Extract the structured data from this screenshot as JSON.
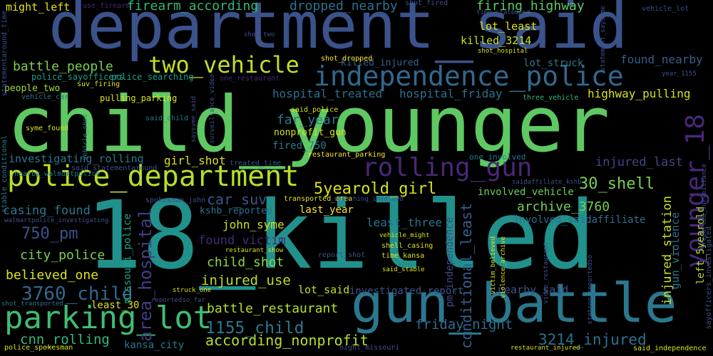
{
  "cloud": {
    "words": [
      {
        "text": "department_said",
        "color": "#3b528b"
      },
      {
        "text": "child_younger",
        "color": "#5ec962"
      },
      {
        "text": "18_killed",
        "color": "#21918c"
      },
      {
        "text": "gun_battle",
        "color": "#2a788e"
      },
      {
        "text": "parking_lot",
        "color": "#3fbc73"
      },
      {
        "text": "police_department",
        "color": "#b5de2b"
      },
      {
        "text": "independence_police",
        "color": "#31688e"
      },
      {
        "text": "two_vehicle",
        "color": "#c2df23"
      },
      {
        "text": "rolling_gun",
        "color": "#482878"
      },
      {
        "text": "younger_18",
        "color": "#482878"
      },
      {
        "text": "battle_people",
        "color": "#7ad151"
      },
      {
        "text": "firearm_according",
        "color": "#35b779"
      },
      {
        "text": "dropped_nearby",
        "color": "#2c728e"
      },
      {
        "text": "firing_highway",
        "color": "#5ec962"
      },
      {
        "text": "might_left",
        "color": "#e5e419"
      },
      {
        "text": "lot_least",
        "color": "#dde318"
      },
      {
        "text": "killed_3214",
        "color": "#cae11f"
      },
      {
        "text": "killed_injured",
        "color": "#33638d"
      },
      {
        "text": "lot_struck",
        "color": "#2a788e"
      },
      {
        "text": "found_nearby",
        "color": "#34608d"
      },
      {
        "text": "hospital_treated",
        "color": "#2c728e"
      },
      {
        "text": "hospital_friday",
        "color": "#2c728e"
      },
      {
        "text": "highway_pulling",
        "color": "#d8e219"
      },
      {
        "text": "far_year",
        "color": "#297b8e"
      },
      {
        "text": "fired_750",
        "color": "#2a788e"
      },
      {
        "text": "5yearold_girl",
        "color": "#d8e219"
      },
      {
        "text": "girl_shot",
        "color": "#d8e219"
      },
      {
        "text": "30_shell",
        "color": "#7ad151"
      },
      {
        "text": "injured_last",
        "color": "#3f4788"
      },
      {
        "text": "car_suv",
        "color": "#39568c"
      },
      {
        "text": "casing_found",
        "color": "#2a788e"
      },
      {
        "text": "investigating_rolling",
        "color": "#2a788e"
      },
      {
        "text": "750_pm",
        "color": "#3b528b"
      },
      {
        "text": "city_police",
        "color": "#7ad151"
      },
      {
        "text": "believed_one",
        "color": "#dde318"
      },
      {
        "text": "3760_child",
        "color": "#31688e"
      },
      {
        "text": "archive_3760",
        "color": "#75d054"
      },
      {
        "text": "involved_vehicle",
        "color": "#6ece58"
      },
      {
        "text": "involved_saidaffiliate",
        "color": "#2d708e"
      },
      {
        "text": "last_year",
        "color": "#fde725"
      },
      {
        "text": "least_three",
        "color": "#2c728e"
      },
      {
        "text": "john_syme",
        "color": "#cae11f"
      },
      {
        "text": "found_victim",
        "color": "#482878"
      },
      {
        "text": "child_shot",
        "color": "#8bd646"
      },
      {
        "text": "injured_use",
        "color": "#b8de29"
      },
      {
        "text": "lot_said",
        "color": "#bddf26"
      },
      {
        "text": "investigated_report",
        "color": "#3b528b"
      },
      {
        "text": "nearby_said",
        "color": "#3b528b"
      },
      {
        "text": "battle_restaurant",
        "color": "#b5de2b"
      },
      {
        "text": "1155_child",
        "color": "#2a788e"
      },
      {
        "text": "according_nonprofit",
        "color": "#b5de2b"
      },
      {
        "text": "cnn_rolling",
        "color": "#35b779"
      },
      {
        "text": "friday_night",
        "color": "#2e6e8e"
      },
      {
        "text": "3214_injured",
        "color": "#2c718e"
      },
      {
        "text": "kansa_city",
        "color": "#2a788e"
      },
      {
        "text": "least_30",
        "color": "#dde318"
      },
      {
        "text": "area_hospital",
        "color": "#433e85"
      },
      {
        "text": "missouri_police",
        "color": "#20a486"
      },
      {
        "text": "conditional_least",
        "color": "#35608d"
      },
      {
        "text": "injured_station",
        "color": "#cae11f"
      },
      {
        "text": "gun_violence",
        "color": "#2c728e"
      },
      {
        "text": "left_5yearold",
        "color": "#b5de2b"
      },
      {
        "text": "people_two",
        "color": "#a2da37"
      },
      {
        "text": "police_sayofficers",
        "color": "#1f9e89"
      },
      {
        "text": "police_searching",
        "color": "#1f9e89"
      },
      {
        "text": "pulling_parking",
        "color": "#dde318"
      },
      {
        "text": "nonprofit_gun",
        "color": "#dde318"
      },
      {
        "text": "kshb_reported",
        "color": "#2c728e"
      },
      {
        "text": "pm_independence",
        "color": "#3e4989"
      },
      {
        "text": "spokesman_john",
        "color": "#3b528b"
      },
      {
        "text": "vehicle_car",
        "color": "#2a788e"
      },
      {
        "text": "syme_found",
        "color": "#dde318"
      },
      {
        "text": "said_child",
        "color": "#2a788e"
      },
      {
        "text": "suv_firing",
        "color": "#dde318"
      },
      {
        "text": "said_police",
        "color": "#dde318"
      },
      {
        "text": "three_vehicle",
        "color": "#35b779"
      },
      {
        "text": "one_restaurant",
        "color": "#482878"
      },
      {
        "text": "shot_fired",
        "color": "#3b528b"
      },
      {
        "text": "shot_dropped",
        "color": "#fde725"
      },
      {
        "text": "shot_hospital",
        "color": "#dde318"
      },
      {
        "text": "time_statement",
        "color": "#3b528b"
      },
      {
        "text": "show_two",
        "color": "#3b528b"
      },
      {
        "text": "vehicle_lot",
        "color": "#3b528b"
      },
      {
        "text": "year_1155",
        "color": "#3b528b"
      },
      {
        "text": "restaurant_parking",
        "color": "#fde725"
      },
      {
        "text": "treated_time",
        "color": "#3b528b"
      },
      {
        "text": "one_involved",
        "color": "#2a788e"
      },
      {
        "text": "saidaffiliate_kshb",
        "color": "#3b528b"
      },
      {
        "text": "transported_area",
        "color": "#dde318"
      },
      {
        "text": "searching_involved",
        "color": "#3b528b"
      },
      {
        "text": "nearby_walmartpolice",
        "color": "#2a788e"
      },
      {
        "text": "walmartpolice_investigating",
        "color": "#3b528b"
      },
      {
        "text": "restaurant_show",
        "color": "#dde318"
      },
      {
        "text": "report_shot",
        "color": "#3b528b"
      },
      {
        "text": "vehicle_might",
        "color": "#dde318"
      },
      {
        "text": "shell_casing",
        "color": "#dde318"
      },
      {
        "text": "time_kansa",
        "color": "#dde318"
      },
      {
        "text": "said_stable",
        "color": "#dde318"
      },
      {
        "text": "struck_one",
        "color": "#dde318"
      },
      {
        "text": "reportedso_far",
        "color": "#3b528b"
      },
      {
        "text": "shot_transported",
        "color": "#2a788e"
      },
      {
        "text": "police_spokesman",
        "color": "#dde318"
      },
      {
        "text": "night_missouri",
        "color": "#3b528b"
      },
      {
        "text": "restaurant_injured",
        "color": "#dde318"
      },
      {
        "text": "said_independence",
        "color": "#dde318"
      },
      {
        "text": "said_statementaround",
        "color": "#3b528b"
      },
      {
        "text": "use_firearm",
        "color": "#482878"
      },
      {
        "text": "statementaround_time",
        "color": "#3b528b"
      },
      {
        "text": "stable_conditional",
        "color": "#2a788e"
      },
      {
        "text": "saysyme_said",
        "color": "#3b528b"
      },
      {
        "text": "surveillance_video",
        "color": "#3b528b"
      },
      {
        "text": "vehicle_shot",
        "color": "#2a788e"
      },
      {
        "text": "victim_believed",
        "color": "#dde318"
      },
      {
        "text": "violence_archive",
        "color": "#dde318"
      },
      {
        "text": "video_restaurant",
        "color": "#3b528b"
      },
      {
        "text": "station_reportedso",
        "color": "#3b528b"
      },
      {
        "text": "statement_saysyme",
        "color": "#3b528b"
      },
      {
        "text": "reported_surveillance",
        "color": "#3b528b"
      },
      {
        "text": "sayofficers_investigated",
        "color": "#3b528b"
      }
    ]
  }
}
